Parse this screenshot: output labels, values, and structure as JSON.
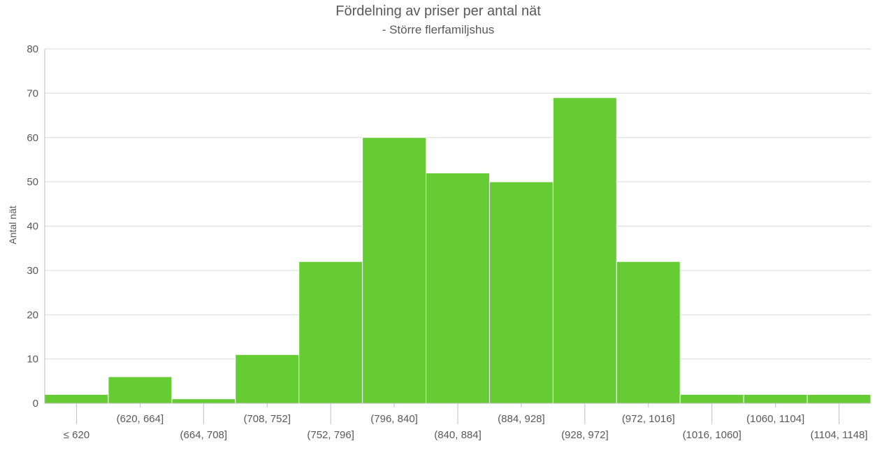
{
  "chart_data": {
    "type": "bar",
    "title": "Fördelning av priser per antal nät",
    "subtitle": "- Större flerfamiljshus",
    "xlabel": "",
    "ylabel": "Antal nät",
    "categories": [
      "≤ 620",
      "(620, 664]",
      "(664, 708]",
      "(708, 752]",
      "(752, 796]",
      "(796, 840]",
      "(840, 884]",
      "(884, 928]",
      "(928, 972]",
      "(972, 1016]",
      "(1016, 1060]",
      "(1060, 1104]",
      "(1104, 1148]"
    ],
    "values": [
      2,
      6,
      1,
      11,
      32,
      60,
      52,
      50,
      69,
      32,
      2,
      2,
      2
    ],
    "ylim": [
      0,
      80
    ],
    "yticks": [
      0,
      10,
      20,
      30,
      40,
      50,
      60,
      70,
      80
    ],
    "grid": true,
    "legend": "none",
    "bar_color": "#66cc33"
  }
}
